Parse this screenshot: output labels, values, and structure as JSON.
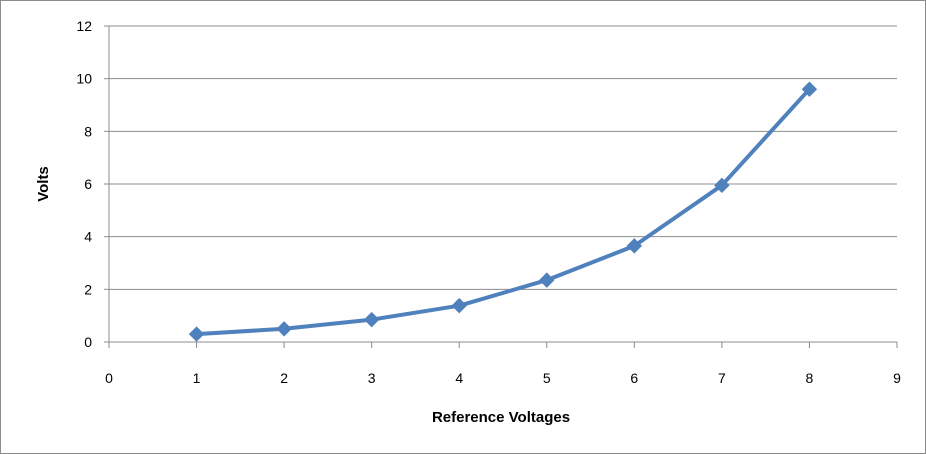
{
  "chart_data": {
    "type": "line",
    "title": "",
    "xlabel": "Reference Voltages",
    "ylabel": "Volts",
    "xlim": [
      0,
      9
    ],
    "ylim": [
      0,
      12
    ],
    "xticks": [
      0,
      1,
      2,
      3,
      4,
      5,
      6,
      7,
      8,
      9
    ],
    "yticks": [
      0,
      2,
      4,
      6,
      8,
      10,
      12
    ],
    "grid": "horizontal",
    "legend": "none",
    "series": [
      {
        "color": "#4f81bd",
        "marker": "diamond",
        "x": [
          1,
          2,
          3,
          4,
          5,
          6,
          7,
          8
        ],
        "y": [
          0.3,
          0.5,
          0.85,
          1.38,
          2.35,
          3.65,
          5.95,
          9.6
        ]
      }
    ]
  }
}
